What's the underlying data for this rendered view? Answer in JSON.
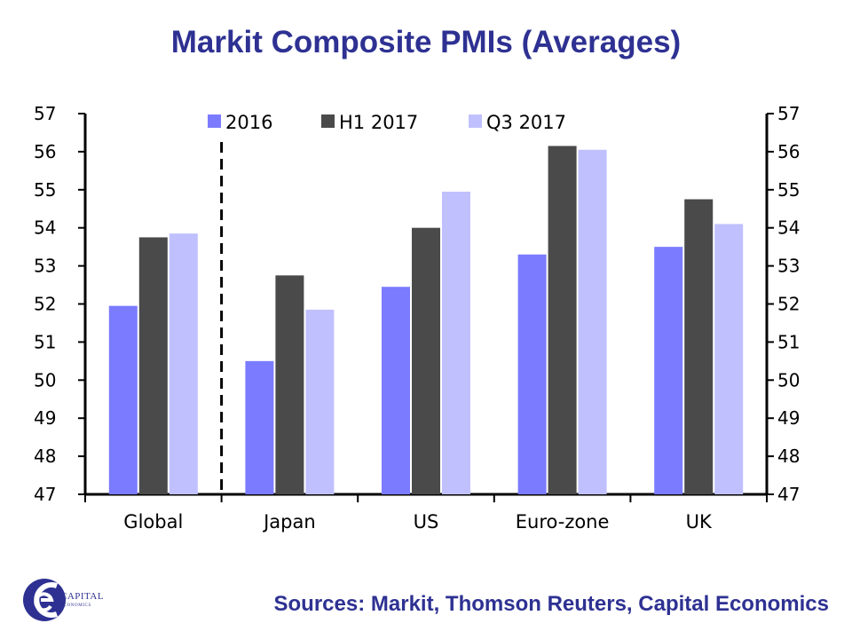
{
  "title": "Markit Composite PMIs (Averages)",
  "source": "Sources: Markit, Thomson Reuters, Capital Economics",
  "logo": {
    "line1": "CAPITAL",
    "line2": "ECONOMICS"
  },
  "colors": {
    "title": "#2E3192",
    "s2016": "#7B7BFF",
    "h1_2017": "#4A4A4A",
    "q3_2017": "#C0C0FF"
  },
  "chart_data": {
    "type": "bar",
    "categories": [
      "Global",
      "Japan",
      "US",
      "Euro-zone",
      "UK"
    ],
    "series": [
      {
        "name": "2016",
        "values": [
          51.95,
          50.5,
          52.45,
          53.3,
          53.5
        ],
        "color": "#7B7BFF"
      },
      {
        "name": "H1 2017",
        "values": [
          53.75,
          52.75,
          54.0,
          56.15,
          54.75
        ],
        "color": "#4A4A4A"
      },
      {
        "name": "Q3 2017",
        "values": [
          53.85,
          51.85,
          54.95,
          56.05,
          54.1
        ],
        "color": "#C0C0FF"
      }
    ],
    "ylim": [
      47,
      57
    ],
    "yticks": [
      47,
      48,
      49,
      50,
      51,
      52,
      53,
      54,
      55,
      56,
      57
    ],
    "secondary_axis": true,
    "divider_after_category": "Global",
    "legend_position": "top",
    "grid": false
  }
}
